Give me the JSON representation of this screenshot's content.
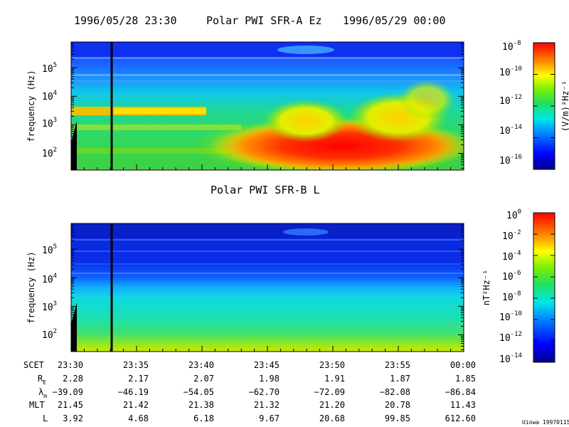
{
  "chart_data": [
    {
      "type": "heatmap",
      "title_left": "1996/05/28 23:30",
      "title": "Polar PWI SFR-A Ez",
      "title_right": "1996/05/29 00:00",
      "ylabel": "frequency (Hz)",
      "yscale": "log",
      "ylim": [
        26,
        800000
      ],
      "yticks": [
        {
          "base": "10",
          "exp": "2"
        },
        {
          "base": "10",
          "exp": "3"
        },
        {
          "base": "10",
          "exp": "4"
        },
        {
          "base": "10",
          "exp": "5"
        }
      ],
      "xlim": [
        "23:30",
        "00:00"
      ],
      "colorbar": {
        "label": "(V/m)²Hz⁻¹",
        "scale": "log",
        "range": [
          1e-17,
          1e-08
        ],
        "ticks": [
          {
            "base": "10",
            "exp": "-8"
          },
          {
            "base": "10",
            "exp": "-10"
          },
          {
            "base": "10",
            "exp": "-12"
          },
          {
            "base": "10",
            "exp": "-14"
          },
          {
            "base": "10",
            "exp": "-16"
          }
        ]
      },
      "marker_time": "23:33"
    },
    {
      "type": "heatmap",
      "title": "Polar PWI SFR-B L",
      "ylabel": "frequency (Hz)",
      "yscale": "log",
      "ylim": [
        26,
        800000
      ],
      "yticks": [
        {
          "base": "10",
          "exp": "2"
        },
        {
          "base": "10",
          "exp": "3"
        },
        {
          "base": "10",
          "exp": "4"
        },
        {
          "base": "10",
          "exp": "5"
        }
      ],
      "xlim": [
        "23:30",
        "00:00"
      ],
      "colorbar": {
        "label": "nT²Hz⁻¹",
        "scale": "log",
        "range": [
          1e-14,
          1
        ],
        "ticks": [
          {
            "base": "10",
            "exp": "0"
          },
          {
            "base": "10",
            "exp": "-2"
          },
          {
            "base": "10",
            "exp": "-4"
          },
          {
            "base": "10",
            "exp": "-6"
          },
          {
            "base": "10",
            "exp": "-8"
          },
          {
            "base": "10",
            "exp": "-10"
          },
          {
            "base": "10",
            "exp": "-12"
          },
          {
            "base": "10",
            "exp": "-14"
          }
        ]
      },
      "marker_time": "23:33"
    }
  ],
  "ephemeris": {
    "rows": [
      {
        "label": "SCET",
        "values": [
          "23:30",
          "23:35",
          "23:40",
          "23:45",
          "23:50",
          "23:55",
          "00:00"
        ]
      },
      {
        "label": "R",
        "sub": "E",
        "values": [
          "2.28",
          "2.17",
          "2.07",
          "1.98",
          "1.91",
          "1.87",
          "1.85"
        ]
      },
      {
        "label": "λ",
        "sub": "m",
        "values": [
          "−39.09",
          "−46.19",
          "−54.05",
          "−62.70",
          "−72.09",
          "−82.08",
          "−86.84"
        ]
      },
      {
        "label": "MLT",
        "values": [
          "21.45",
          "21.42",
          "21.38",
          "21.32",
          "21.20",
          "20.78",
          "11.43"
        ]
      },
      {
        "label": "L",
        "values": [
          "3.92",
          "4.68",
          "6.18",
          "9.67",
          "20.68",
          "99.85",
          "612.60"
        ]
      }
    ]
  },
  "footer": "Uiowa 19970115"
}
